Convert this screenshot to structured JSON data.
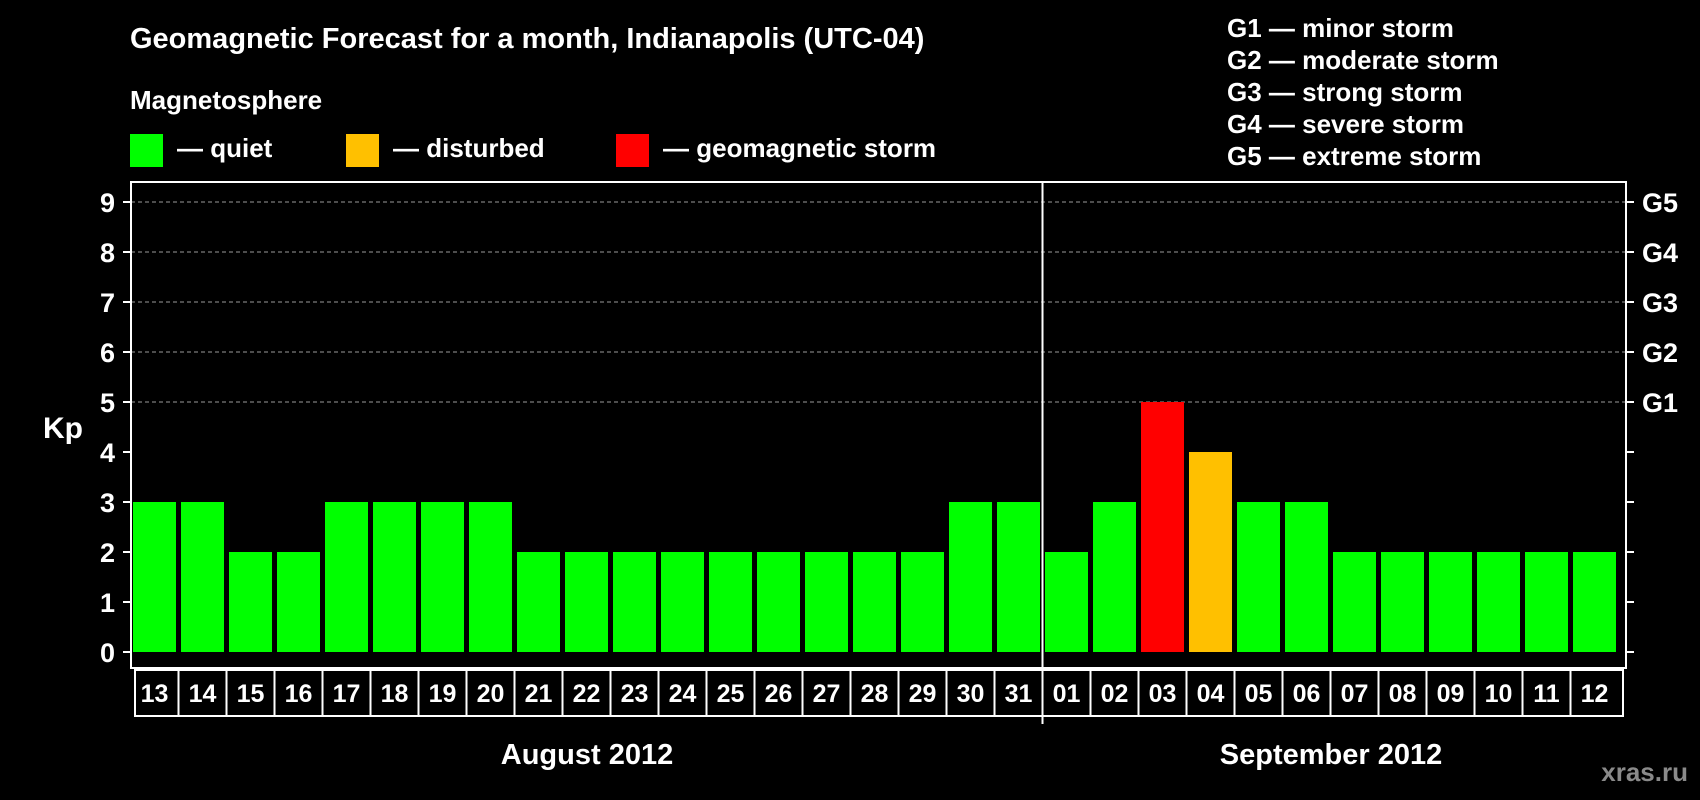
{
  "chart_data": {
    "type": "bar",
    "title": "Geomagnetic Forecast for a month, Indianapolis (UTC-04)",
    "subtitle": "Magnetosphere",
    "ylabel": "Kp",
    "ylim": [
      0,
      9
    ],
    "yticks": [
      "0",
      "1",
      "2",
      "3",
      "4",
      "5",
      "6",
      "7",
      "8",
      "9"
    ],
    "grid": true,
    "categories": [
      "13",
      "14",
      "15",
      "16",
      "17",
      "18",
      "19",
      "20",
      "21",
      "22",
      "23",
      "24",
      "25",
      "26",
      "27",
      "28",
      "29",
      "30",
      "31",
      "01",
      "02",
      "03",
      "04",
      "05",
      "06",
      "07",
      "08",
      "09",
      "10",
      "11",
      "12"
    ],
    "values": [
      3,
      3,
      2,
      2,
      3,
      3,
      3,
      3,
      2,
      2,
      2,
      2,
      2,
      2,
      2,
      2,
      2,
      3,
      3,
      2,
      3,
      5,
      4,
      3,
      3,
      2,
      2,
      2,
      2,
      2,
      2
    ],
    "status": [
      "quiet",
      "quiet",
      "quiet",
      "quiet",
      "quiet",
      "quiet",
      "quiet",
      "quiet",
      "quiet",
      "quiet",
      "quiet",
      "quiet",
      "quiet",
      "quiet",
      "quiet",
      "quiet",
      "quiet",
      "quiet",
      "quiet",
      "quiet",
      "quiet",
      "storm",
      "disturbed",
      "quiet",
      "quiet",
      "quiet",
      "quiet",
      "quiet",
      "quiet",
      "quiet",
      "quiet"
    ],
    "months": [
      {
        "label": "August 2012",
        "start": 0,
        "count": 19
      },
      {
        "label": "September 2012",
        "start": 19,
        "count": 12
      }
    ],
    "legend": [
      {
        "key": "quiet",
        "label": "— quiet",
        "color": "#00ff00"
      },
      {
        "key": "disturbed",
        "label": "— disturbed",
        "color": "#ffc000"
      },
      {
        "key": "storm",
        "label": "— geomagnetic storm",
        "color": "#ff0000"
      }
    ],
    "storm_levels": [
      {
        "label": "G1 — minor storm"
      },
      {
        "label": "G2 — moderate storm"
      },
      {
        "label": "G3 — strong storm"
      },
      {
        "label": "G4 — severe storm"
      },
      {
        "label": "G5 — extreme storm"
      }
    ],
    "right_ticks": [
      {
        "kp": 5,
        "label": "G1"
      },
      {
        "kp": 6,
        "label": "G2"
      },
      {
        "kp": 7,
        "label": "G3"
      },
      {
        "kp": 8,
        "label": "G4"
      },
      {
        "kp": 9,
        "label": "G5"
      }
    ]
  },
  "watermark": "xras.ru"
}
